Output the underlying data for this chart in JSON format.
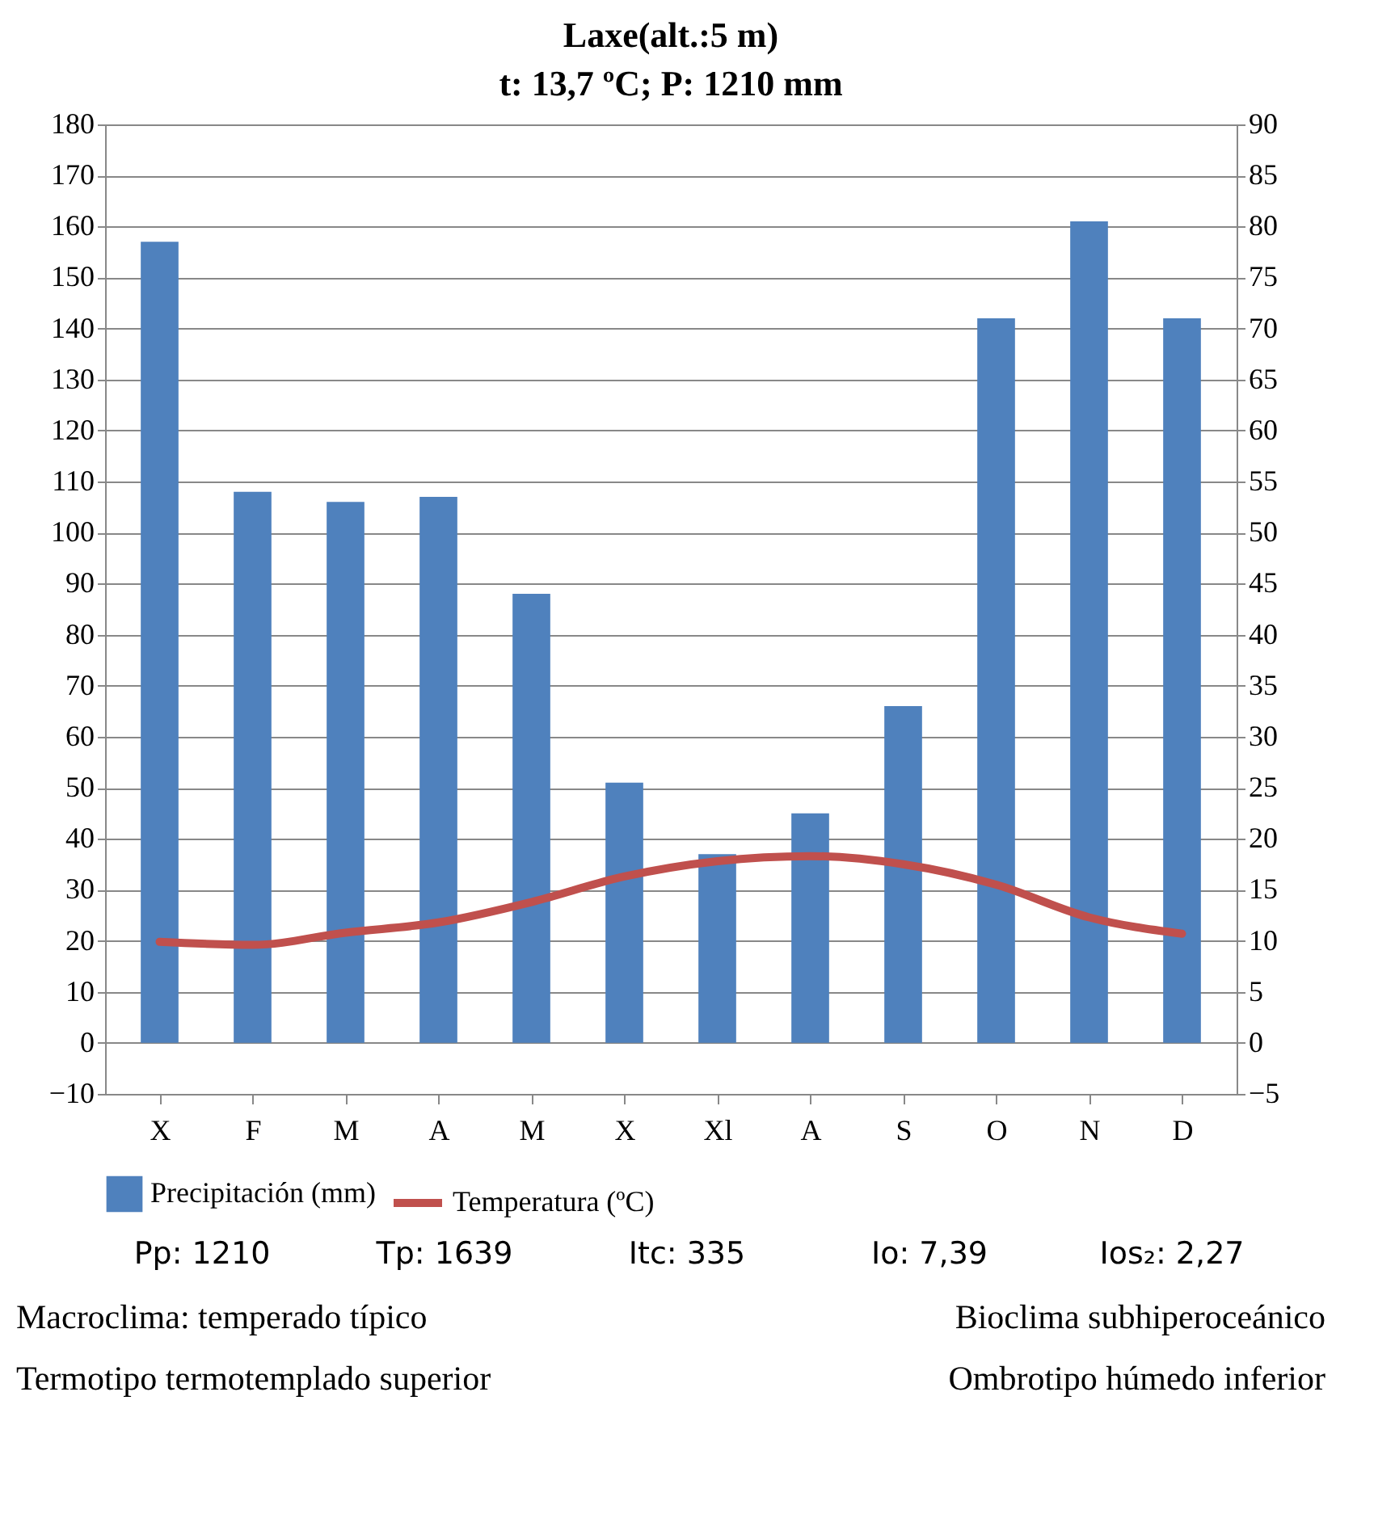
{
  "chart_data": {
    "type": "bar",
    "title": "Laxe(alt.:5 m)",
    "subtitle": "t: 13,7 ºC; P: 1210 mm",
    "categories": [
      "X",
      "F",
      "M",
      "A",
      "M",
      "X",
      "Xl",
      "A",
      "S",
      "O",
      "N",
      "D"
    ],
    "series": [
      {
        "name": "Precipitación (mm)",
        "color": "#4f81bd",
        "values": [
          157,
          108,
          106,
          107,
          88,
          51,
          37,
          45,
          66,
          142,
          161,
          142
        ]
      },
      {
        "name": "Temperatura (ºC)",
        "type": "line",
        "axis": "y2",
        "color": "#c0504d",
        "values": [
          9.9,
          9.6,
          10.8,
          11.8,
          13.8,
          16.3,
          17.8,
          18.3,
          17.5,
          15.5,
          12.3,
          10.7
        ]
      }
    ],
    "ylim": [
      -10,
      180
    ],
    "yticks": [
      -10,
      0,
      10,
      20,
      30,
      40,
      50,
      60,
      70,
      80,
      90,
      100,
      110,
      120,
      130,
      140,
      150,
      160,
      170,
      180
    ],
    "y2lim": [
      -5,
      90
    ],
    "y2ticks": [
      -5,
      0,
      5,
      10,
      15,
      20,
      25,
      30,
      35,
      40,
      45,
      50,
      55,
      60,
      65,
      70,
      75,
      80,
      85,
      90
    ],
    "grid": "y",
    "legend": "bottom",
    "marker": "none",
    "line_style": "solid",
    "annotations": [
      "Pp: 1210",
      "Tp: 1639",
      "Itc: 335",
      "Io: 7,39",
      "Ios₂: 2,27",
      "Macroclima: temperado típico",
      "Bioclima subhiperoceánico",
      "Termotipo termotemplado superior",
      "Ombrotipo húmedo inferior"
    ]
  }
}
